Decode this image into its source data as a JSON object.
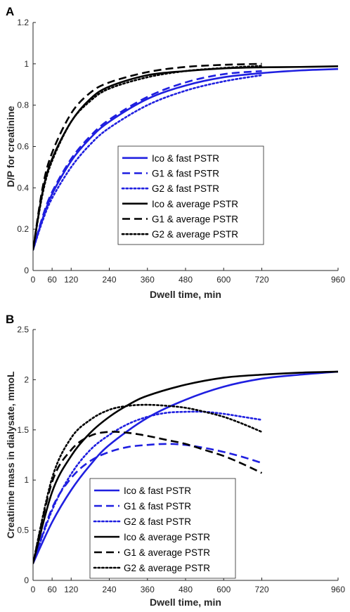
{
  "chart_data": [
    {
      "type": "line",
      "panel_label": "A",
      "xlabel": "Dwell time, min",
      "ylabel": "D/P for creatinine",
      "xlim": [
        0,
        960
      ],
      "ylim": [
        0,
        1.2
      ],
      "xticks": [
        0,
        60,
        120,
        240,
        360,
        480,
        600,
        720,
        960
      ],
      "yticks": [
        0,
        0.2,
        0.4,
        0.6,
        0.8,
        1,
        1.2
      ],
      "xtick_labels": [
        "0",
        "60",
        "120",
        "240",
        "360",
        "480",
        "600",
        "720",
        "960"
      ],
      "ytick_labels": [
        "0",
        "0.2",
        "0.4",
        "0.6",
        "0.8",
        "1",
        "1.2"
      ],
      "grid": false,
      "legend_position": "center-right",
      "series": [
        {
          "name": "Ico & fast PSTR",
          "color": "#1f1fe0",
          "dash": "solid",
          "x": [
            0,
            30,
            60,
            120,
            180,
            240,
            360,
            480,
            600,
            720,
            840,
            960
          ],
          "y": [
            0.1,
            0.25,
            0.37,
            0.53,
            0.64,
            0.72,
            0.83,
            0.895,
            0.935,
            0.955,
            0.968,
            0.975
          ]
        },
        {
          "name": "G1 & fast PSTR",
          "color": "#1f1fe0",
          "dash": "dashed",
          "x": [
            0,
            30,
            60,
            120,
            180,
            240,
            360,
            480,
            600,
            720
          ],
          "y": [
            0.1,
            0.26,
            0.38,
            0.54,
            0.65,
            0.73,
            0.84,
            0.91,
            0.95,
            0.965
          ]
        },
        {
          "name": "G2 & fast PSTR",
          "color": "#1f1fe0",
          "dash": "dotted",
          "x": [
            0,
            30,
            60,
            120,
            180,
            240,
            360,
            480,
            600,
            720
          ],
          "y": [
            0.1,
            0.24,
            0.35,
            0.5,
            0.61,
            0.69,
            0.8,
            0.87,
            0.915,
            0.945
          ]
        },
        {
          "name": "Ico & average PSTR",
          "color": "#000000",
          "dash": "solid",
          "x": [
            0,
            30,
            60,
            120,
            180,
            240,
            360,
            480,
            600,
            720,
            840,
            960
          ],
          "y": [
            0.1,
            0.38,
            0.54,
            0.72,
            0.83,
            0.89,
            0.945,
            0.965,
            0.978,
            0.983,
            0.985,
            0.988
          ]
        },
        {
          "name": "G1 & average PSTR",
          "color": "#000000",
          "dash": "dashed",
          "x": [
            0,
            30,
            60,
            120,
            180,
            240,
            360,
            480,
            600,
            720
          ],
          "y": [
            0.1,
            0.4,
            0.57,
            0.76,
            0.86,
            0.91,
            0.96,
            0.985,
            0.995,
            1.0
          ]
        },
        {
          "name": "G2 & average PSTR",
          "color": "#000000",
          "dash": "dotted",
          "x": [
            0,
            30,
            60,
            120,
            180,
            240,
            360,
            480,
            600,
            720
          ],
          "y": [
            0.1,
            0.37,
            0.53,
            0.72,
            0.82,
            0.88,
            0.935,
            0.965,
            0.98,
            0.99
          ]
        }
      ]
    },
    {
      "type": "line",
      "panel_label": "B",
      "xlabel": "Dwell time, min",
      "ylabel": "Creatinine mass in dialysate, mmoL",
      "xlim": [
        0,
        960
      ],
      "ylim": [
        0,
        2.5
      ],
      "xticks": [
        0,
        60,
        120,
        240,
        360,
        480,
        600,
        720,
        960
      ],
      "yticks": [
        0,
        0.5,
        1,
        1.5,
        2,
        2.5
      ],
      "xtick_labels": [
        "0",
        "60",
        "120",
        "240",
        "360",
        "480",
        "600",
        "720",
        "960"
      ],
      "ytick_labels": [
        "0",
        "0.5",
        "1",
        "1.5",
        "2",
        "2.5"
      ],
      "grid": false,
      "legend_position": "bottom-center",
      "series": [
        {
          "name": "Ico & fast PSTR",
          "color": "#1f1fe0",
          "dash": "solid",
          "x": [
            0,
            60,
            120,
            180,
            240,
            360,
            480,
            600,
            720,
            840,
            960
          ],
          "y": [
            0.17,
            0.58,
            0.9,
            1.15,
            1.35,
            1.62,
            1.8,
            1.93,
            2.01,
            2.05,
            2.08
          ]
        },
        {
          "name": "G1 & fast PSTR",
          "color": "#1f1fe0",
          "dash": "dashed",
          "x": [
            0,
            60,
            120,
            180,
            240,
            300,
            360,
            420,
            480,
            540,
            600,
            660,
            720
          ],
          "y": [
            0.17,
            0.72,
            1.02,
            1.19,
            1.28,
            1.33,
            1.35,
            1.36,
            1.35,
            1.32,
            1.28,
            1.23,
            1.17
          ]
        },
        {
          "name": "G2 & fast PSTR",
          "color": "#1f1fe0",
          "dash": "dotted",
          "x": [
            0,
            60,
            120,
            180,
            240,
            300,
            360,
            420,
            480,
            540,
            600,
            660,
            720
          ],
          "y": [
            0.17,
            0.7,
            1.06,
            1.3,
            1.45,
            1.56,
            1.63,
            1.67,
            1.68,
            1.68,
            1.66,
            1.63,
            1.6
          ]
        },
        {
          "name": "Ico & average PSTR",
          "color": "#000000",
          "dash": "solid",
          "x": [
            0,
            60,
            120,
            180,
            240,
            300,
            360,
            480,
            600,
            720,
            840,
            960
          ],
          "y": [
            0.17,
            0.88,
            1.24,
            1.47,
            1.63,
            1.75,
            1.84,
            1.95,
            2.02,
            2.05,
            2.07,
            2.08
          ]
        },
        {
          "name": "G1 & average PSTR",
          "color": "#000000",
          "dash": "dashed",
          "x": [
            0,
            60,
            120,
            180,
            240,
            300,
            360,
            420,
            480,
            540,
            600,
            660,
            720
          ],
          "y": [
            0.17,
            0.98,
            1.3,
            1.44,
            1.48,
            1.47,
            1.44,
            1.4,
            1.36,
            1.3,
            1.24,
            1.16,
            1.07
          ]
        },
        {
          "name": "G2 & average PSTR",
          "color": "#000000",
          "dash": "dotted",
          "x": [
            0,
            60,
            120,
            180,
            240,
            300,
            360,
            420,
            480,
            540,
            600,
            660,
            720
          ],
          "y": [
            0.17,
            1.02,
            1.42,
            1.6,
            1.7,
            1.74,
            1.75,
            1.74,
            1.72,
            1.68,
            1.63,
            1.56,
            1.48
          ]
        }
      ]
    }
  ]
}
